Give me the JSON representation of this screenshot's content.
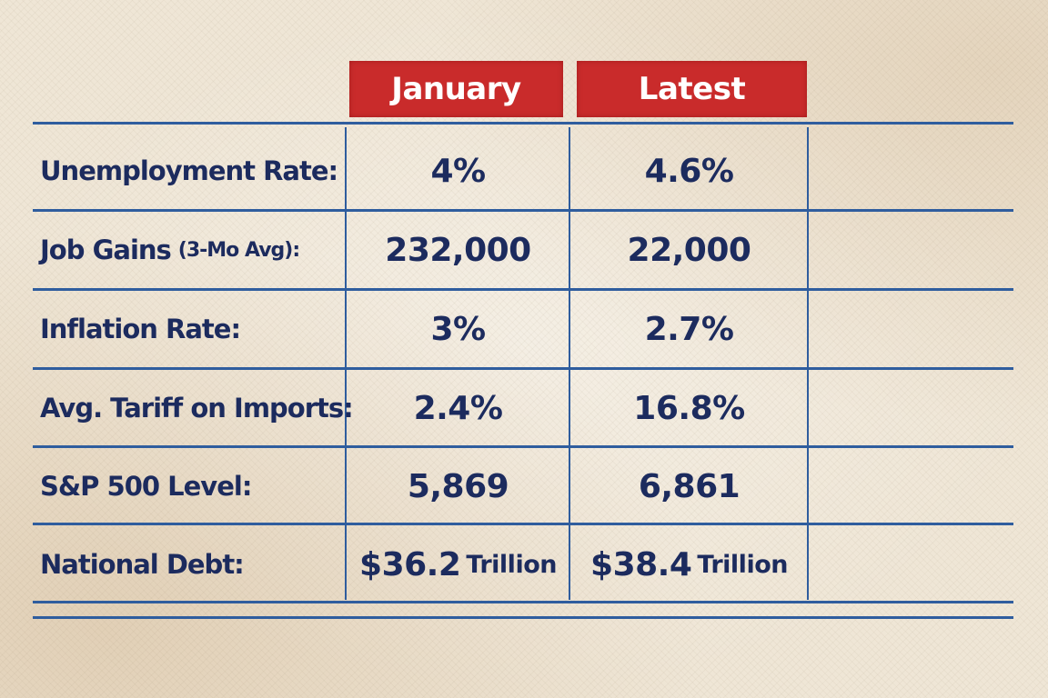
{
  "chart_data": {
    "type": "table",
    "columns": [
      "January",
      "Latest"
    ],
    "rows": [
      {
        "label": "Unemployment Rate:",
        "label_note": "",
        "january": "4%",
        "january_unit": "",
        "latest": "4.6%",
        "latest_unit": ""
      },
      {
        "label": "Job Gains",
        "label_note": "(3-Mo Avg):",
        "january": "232,000",
        "january_unit": "",
        "latest": "22,000",
        "latest_unit": ""
      },
      {
        "label": "Inflation Rate:",
        "label_note": "",
        "january": "3%",
        "january_unit": "",
        "latest": "2.7%",
        "latest_unit": ""
      },
      {
        "label": "Avg. Tariff on Imports:",
        "label_note": "",
        "january": "2.4%",
        "january_unit": "",
        "latest": "16.8%",
        "latest_unit": ""
      },
      {
        "label": "S&P 500 Level:",
        "label_note": "",
        "january": "5,869",
        "january_unit": "",
        "latest": "6,861",
        "latest_unit": ""
      },
      {
        "label": "National Debt:",
        "label_note": "",
        "january": "$36.2",
        "january_unit": "Trillion",
        "latest": "$38.4",
        "latest_unit": "Trillion"
      }
    ],
    "colors": {
      "header": "#c92b2b",
      "text": "#1c2b5e",
      "rules": "#2f5d9e",
      "paper": "#efe6d6"
    }
  }
}
